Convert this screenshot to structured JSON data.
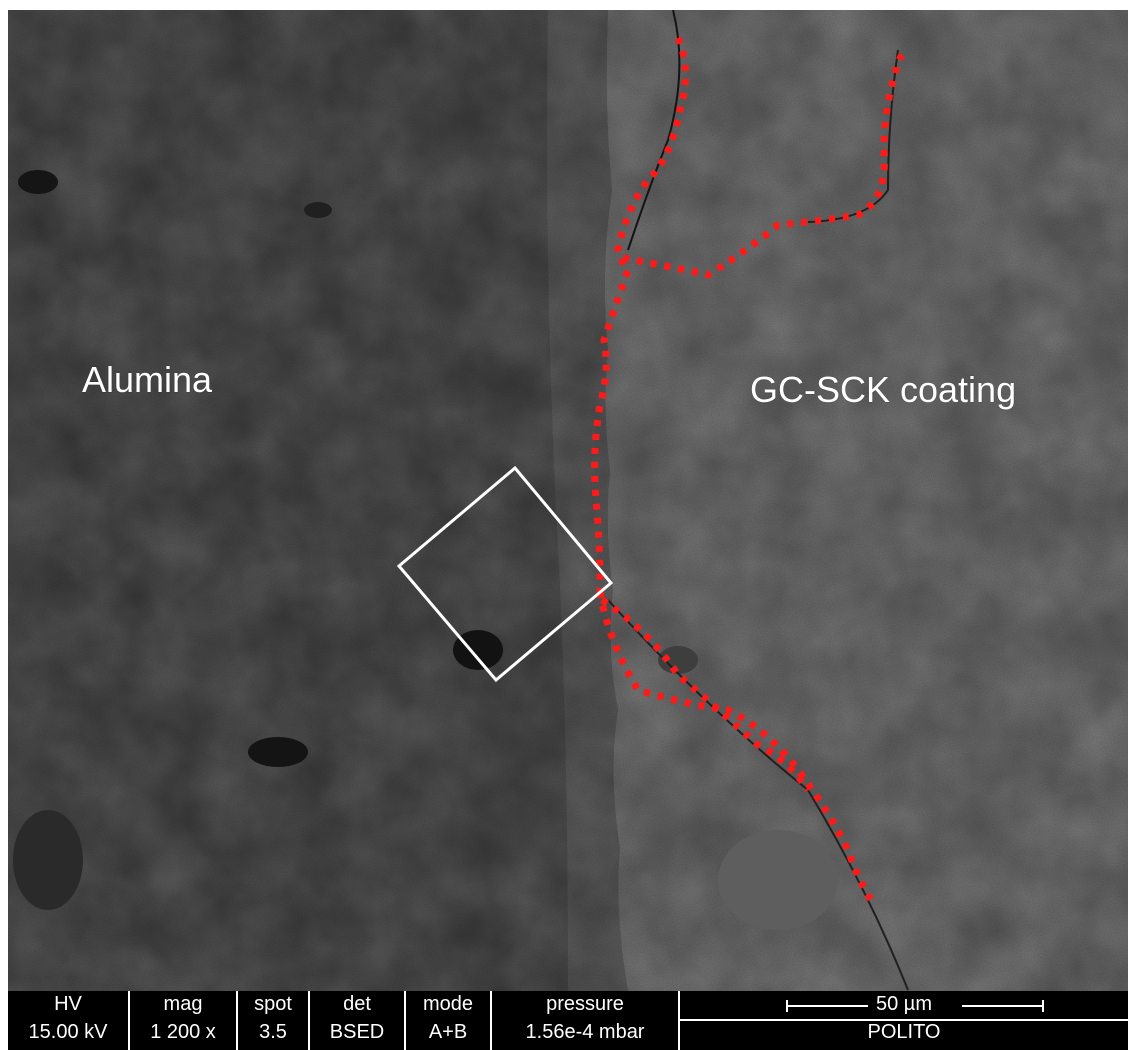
{
  "image": {
    "left_region_label": "Alumina",
    "right_region_label": "GC-SCK coating"
  },
  "colors": {
    "alumina_gray": "#474747",
    "coating_gray": "#6e6e6e",
    "interface_dots": "#ff1a1a",
    "inspection_box": "#ffffff",
    "databar_bg": "#000000",
    "databar_text": "#ffffff"
  },
  "databar": {
    "columns": [
      {
        "header": "HV",
        "value": "15.00 kV"
      },
      {
        "header": "mag",
        "value": "1 200 x"
      },
      {
        "header": "spot",
        "value": "3.5"
      },
      {
        "header": "det",
        "value": "BSED"
      },
      {
        "header": "mode",
        "value": "A+B"
      },
      {
        "header": "pressure",
        "value": "1.56e-4 mbar"
      }
    ],
    "scale_bar_label": "50 µm",
    "institution": "POLITO"
  }
}
